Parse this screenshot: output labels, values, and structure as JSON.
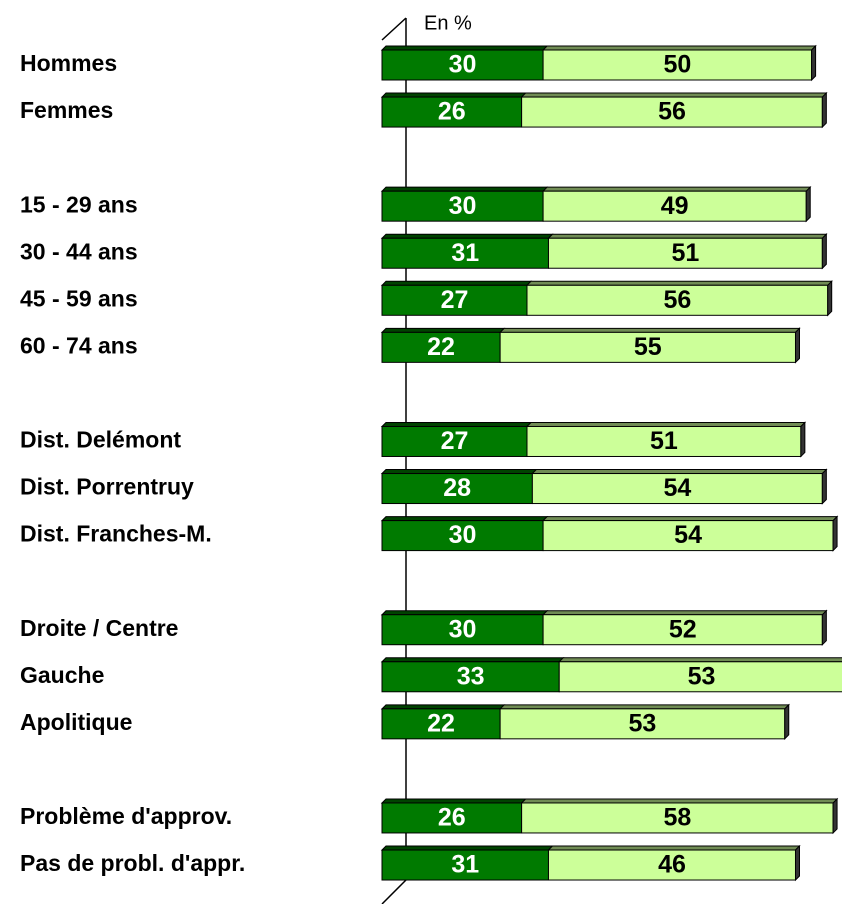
{
  "chart_data": {
    "type": "bar",
    "orientation": "horizontal",
    "stacked": true,
    "axis_label": "En %",
    "categories": [
      "Hommes",
      "Femmes",
      null,
      "15 - 29 ans",
      "30 - 44 ans",
      "45 - 59 ans",
      "60 - 74 ans",
      null,
      "Dist. Delémont",
      "Dist. Porrentruy",
      "Dist. Franches-M.",
      null,
      "Droite / Centre",
      "Gauche",
      "Apolitique",
      null,
      "Problème d'approv.",
      "Pas de probl. d'appr."
    ],
    "series": [
      {
        "color": "#007a00",
        "values": [
          30,
          26,
          null,
          30,
          31,
          27,
          22,
          null,
          27,
          28,
          30,
          null,
          30,
          33,
          22,
          null,
          26,
          31
        ]
      },
      {
        "color": "#ccff99",
        "values": [
          50,
          56,
          null,
          49,
          51,
          56,
          55,
          null,
          51,
          54,
          54,
          null,
          52,
          53,
          53,
          null,
          58,
          46
        ]
      }
    ]
  }
}
